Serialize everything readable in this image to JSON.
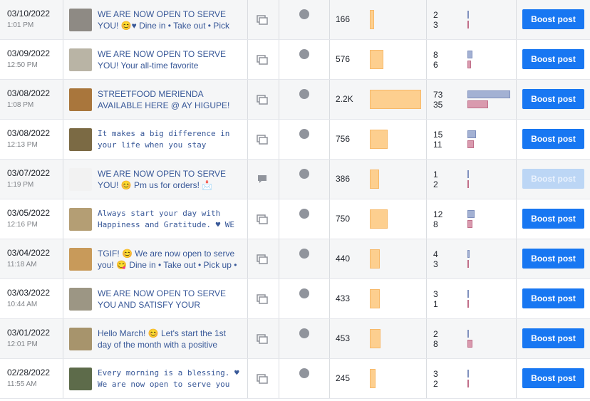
{
  "boost_label": "Boost post",
  "colors": {
    "accent": "#1877f2",
    "reach_bar": "#fdcf8f",
    "engagement_bar_1": "#a3b1d3",
    "engagement_bar_2": "#d99aae"
  },
  "posts": [
    {
      "date": "03/10/2022",
      "time": "1:01 PM",
      "title": "WE ARE NOW OPEN TO SERVE YOU! 😊♥ Dine in • Take out • Pick",
      "mono": false,
      "post_type": "album-icon",
      "reach": "166",
      "reach_value": 166,
      "eng1": "2",
      "eng2": "3",
      "boost_enabled": true,
      "thumb": "#8e8a84"
    },
    {
      "date": "03/09/2022",
      "time": "12:50 PM",
      "title": "WE ARE NOW OPEN TO SERVE YOU! Your all-time favorite",
      "mono": false,
      "post_type": "album-icon",
      "reach": "576",
      "reach_value": 576,
      "eng1": "8",
      "eng2": "6",
      "boost_enabled": true,
      "thumb": "#b9b4a5"
    },
    {
      "date": "03/08/2022",
      "time": "1:08 PM",
      "title": "STREETFOOD MERIENDA AVAILABLE HERE @ AY HIGUPE!",
      "mono": false,
      "post_type": "album-icon",
      "reach": "2.2K",
      "reach_value": 2200,
      "eng1": "73",
      "eng2": "35",
      "boost_enabled": true,
      "thumb": "#a9763c"
    },
    {
      "date": "03/08/2022",
      "time": "12:13 PM",
      "title": "It makes a big difference in your life when you stay",
      "mono": true,
      "post_type": "album-icon",
      "reach": "756",
      "reach_value": 756,
      "eng1": "15",
      "eng2": "11",
      "boost_enabled": true,
      "thumb": "#7b6a44"
    },
    {
      "date": "03/07/2022",
      "time": "1:19 PM",
      "title": "WE ARE NOW OPEN TO SERVE YOU! 😊 Pm us for orders! 📩",
      "mono": false,
      "post_type": "status-icon",
      "reach": "386",
      "reach_value": 386,
      "eng1": "1",
      "eng2": "2",
      "boost_enabled": false,
      "thumb": "#f2f2f2"
    },
    {
      "date": "03/05/2022",
      "time": "12:16 PM",
      "title": "Always start your day with Happiness and Gratitude. ♥ WE",
      "mono": true,
      "post_type": "album-icon",
      "reach": "750",
      "reach_value": 750,
      "eng1": "12",
      "eng2": "8",
      "boost_enabled": true,
      "thumb": "#b49e74"
    },
    {
      "date": "03/04/2022",
      "time": "11:18 AM",
      "title": "TGIF! 😊 We are now open to serve you! 😋 Dine in • Take out • Pick up •",
      "mono": false,
      "post_type": "album-icon",
      "reach": "440",
      "reach_value": 440,
      "eng1": "4",
      "eng2": "3",
      "boost_enabled": true,
      "thumb": "#c89a5a"
    },
    {
      "date": "03/03/2022",
      "time": "10:44 AM",
      "title": "WE ARE NOW OPEN TO SERVE YOU AND SATISFY YOUR",
      "mono": false,
      "post_type": "album-icon",
      "reach": "433",
      "reach_value": 433,
      "eng1": "3",
      "eng2": "1",
      "boost_enabled": true,
      "thumb": "#9c9684"
    },
    {
      "date": "03/01/2022",
      "time": "12:01 PM",
      "title": "Hello March! 😊 Let's start the 1st day of the month with a positive",
      "mono": false,
      "post_type": "album-icon",
      "reach": "453",
      "reach_value": 453,
      "eng1": "2",
      "eng2": "8",
      "boost_enabled": true,
      "thumb": "#a7946c"
    },
    {
      "date": "02/28/2022",
      "time": "11:55 AM",
      "title": "Every morning is a blessing. ♥ We are now open to serve you until",
      "mono": true,
      "post_type": "album-icon",
      "reach": "245",
      "reach_value": 245,
      "eng1": "3",
      "eng2": "2",
      "boost_enabled": true,
      "thumb": "#5d6b4a"
    }
  ]
}
